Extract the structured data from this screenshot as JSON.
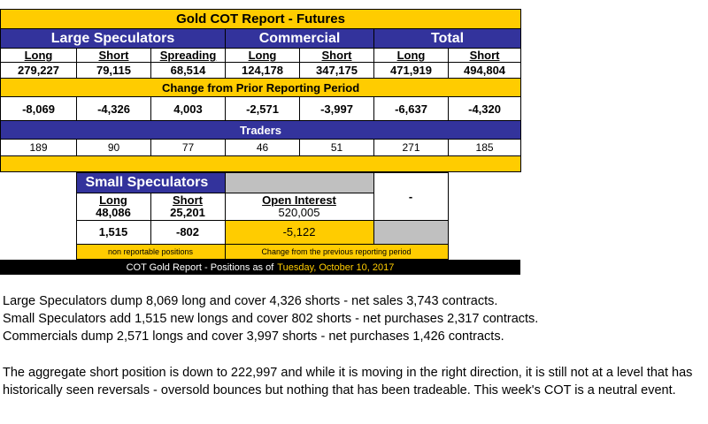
{
  "report": {
    "title": "Gold COT Report - Futures",
    "groups": {
      "large_speculators": "Large Speculators",
      "commercial": "Commercial",
      "total": "Total"
    },
    "columns": [
      "Long",
      "Short",
      "Spreading",
      "Long",
      "Short",
      "Long",
      "Short"
    ],
    "positions": [
      "279,227",
      "79,115",
      "68,514",
      "124,178",
      "347,175",
      "471,919",
      "494,804"
    ],
    "change_title": "Change from Prior Reporting Period",
    "changes": [
      "-8,069",
      "-4,326",
      "4,003",
      "-2,571",
      "-3,997",
      "-6,637",
      "-4,320"
    ],
    "traders_title": "Traders",
    "traders": [
      "189",
      "90",
      "77",
      "46",
      "51",
      "271",
      "185"
    ]
  },
  "small_speculators": {
    "title": "Small Speculators",
    "long_label": "Long",
    "long_value": "48,086",
    "short_label": "Short",
    "short_value": "25,201",
    "long_change": "1,515",
    "short_change": "-802",
    "note": "non reportable positions"
  },
  "open_interest": {
    "label": "Open Interest",
    "value": "520,005",
    "change": "-5,122",
    "dash": "-",
    "note": "Change from the previous reporting period"
  },
  "footer": {
    "label": "COT Gold Report - Positions as of",
    "date": "Tuesday, October 10, 2017"
  },
  "commentary": {
    "lines": [
      "Large Speculators dump 8,069 long and cover 4,326 shorts - net sales 3,743 contracts.",
      "Small Speculators add 1,515 new longs and cover 802 shorts - net purchases 2,317 contracts.",
      "Commercials dump 2,571 longs and cover 3,997 shorts - net purchases 1,426 contracts."
    ],
    "paragraph": "The aggregate short position is down to 222,997 and while it is moving in the right direction, it is still not at a level that has historically seen reversals - oversold bounces but nothing that has been tradeable. This week's COT is a neutral event."
  },
  "colors": {
    "gold": "#ffcc00",
    "navy": "#33339c",
    "gray": "#c0c0c0"
  }
}
